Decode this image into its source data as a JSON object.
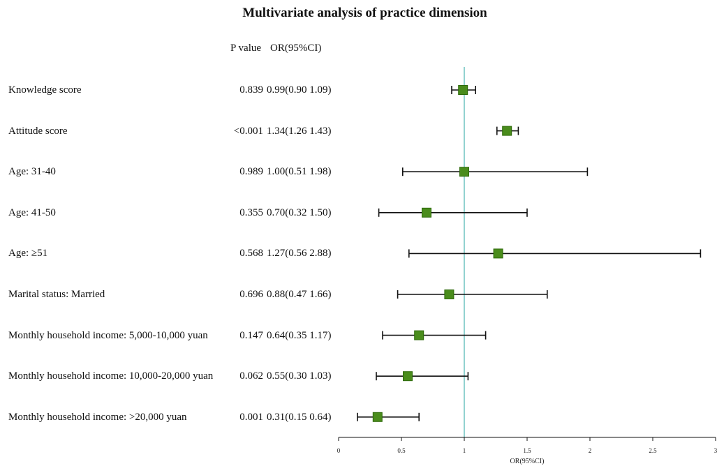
{
  "chart_data": {
    "type": "forest",
    "title": "Multivariate analysis of practice dimension",
    "column_headers": {
      "p_value": "P value",
      "or": "OR(95%CI)"
    },
    "xlabel": "OR(95%CI)",
    "xlim": [
      0,
      3
    ],
    "xticks": [
      0,
      0.5,
      1,
      1.5,
      2,
      2.5,
      3
    ],
    "xtick_labels": [
      "0",
      "0.5",
      "1",
      "1.5",
      "2",
      "2.5",
      "3"
    ],
    "reference_line": 1,
    "colors": {
      "marker": "#4a8c1c",
      "marker_edge": "#2e6a0a",
      "reference_line": "#6fc3c0",
      "whisker": "#111111"
    },
    "rows": [
      {
        "label": "Knowledge score",
        "p": "0.839",
        "or_text": "0.99(0.90 1.09)",
        "or": 0.99,
        "lo": 0.9,
        "hi": 1.09
      },
      {
        "label": "Attitude score",
        "p": "<0.001",
        "or_text": "1.34(1.26 1.43)",
        "or": 1.34,
        "lo": 1.26,
        "hi": 1.43
      },
      {
        "label": "Age: 31-40",
        "p": "0.989",
        "or_text": "1.00(0.51 1.98)",
        "or": 1.0,
        "lo": 0.51,
        "hi": 1.98
      },
      {
        "label": "Age: 41-50",
        "p": "0.355",
        "or_text": "0.70(0.32 1.50)",
        "or": 0.7,
        "lo": 0.32,
        "hi": 1.5
      },
      {
        "label": "Age: ≥51",
        "p": "0.568",
        "or_text": "1.27(0.56 2.88)",
        "or": 1.27,
        "lo": 0.56,
        "hi": 2.88
      },
      {
        "label": "Marital status: Married",
        "p": "0.696",
        "or_text": "0.88(0.47 1.66)",
        "or": 0.88,
        "lo": 0.47,
        "hi": 1.66
      },
      {
        "label": "Monthly household income: 5,000-10,000 yuan",
        "p": "0.147",
        "or_text": "0.64(0.35 1.17)",
        "or": 0.64,
        "lo": 0.35,
        "hi": 1.17
      },
      {
        "label": "Monthly household income: 10,000-20,000 yuan",
        "p": "0.062",
        "or_text": "0.55(0.30 1.03)",
        "or": 0.55,
        "lo": 0.3,
        "hi": 1.03
      },
      {
        "label": "Monthly household income: >20,000 yuan",
        "p": "0.001",
        "or_text": "0.31(0.15 0.64)",
        "or": 0.31,
        "lo": 0.15,
        "hi": 0.64
      }
    ]
  }
}
